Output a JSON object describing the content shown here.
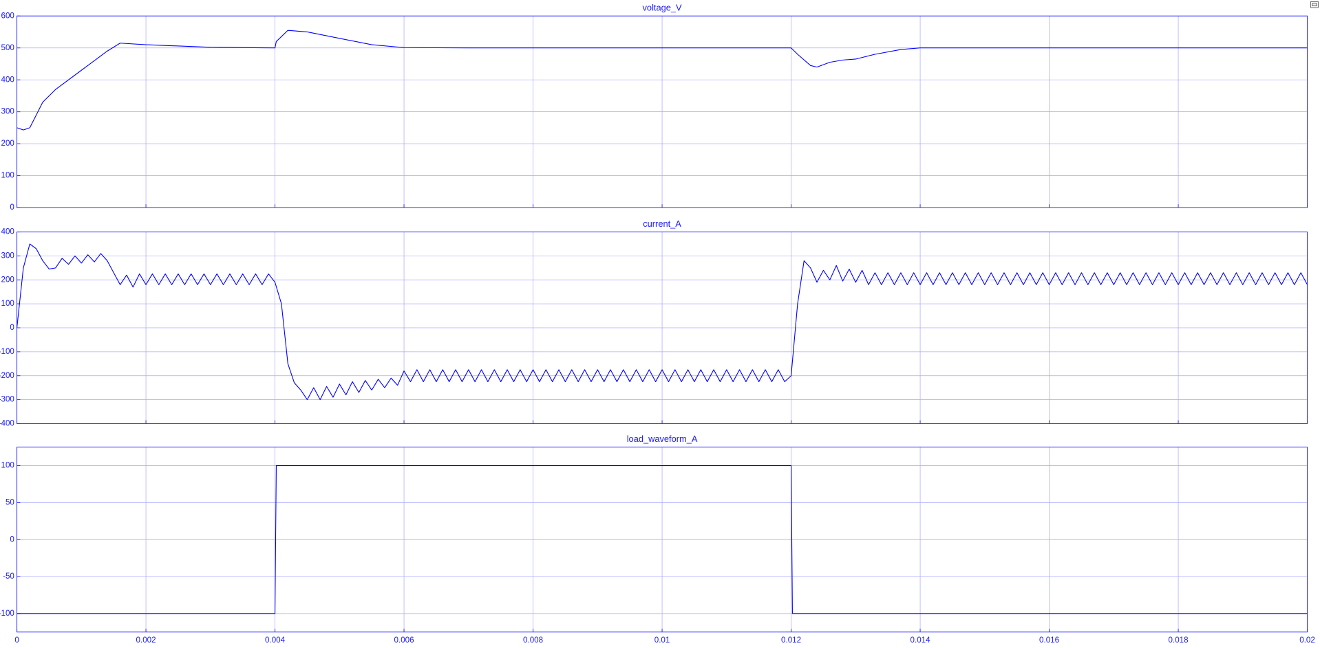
{
  "chart_data": [
    {
      "type": "line",
      "title": "voltage_V",
      "color": "#0000ff",
      "x": [
        0,
        0.0001,
        0.0002,
        0.0003,
        0.0004,
        0.0006,
        0.001,
        0.0014,
        0.0016,
        0.002,
        0.003,
        0.004,
        0.00402,
        0.0042,
        0.0045,
        0.005,
        0.0055,
        0.006,
        0.007,
        0.012,
        0.0121,
        0.0123,
        0.0124,
        0.0126,
        0.0128,
        0.013,
        0.0133,
        0.0137,
        0.014,
        0.02
      ],
      "values": [
        250,
        243,
        250,
        290,
        330,
        370,
        430,
        490,
        515,
        510,
        502,
        500,
        520,
        555,
        550,
        530,
        510,
        501,
        500,
        500,
        480,
        445,
        440,
        455,
        462,
        465,
        480,
        495,
        500,
        500
      ],
      "xlim": [
        0,
        0.02
      ],
      "xticks": [
        0,
        0.002,
        0.004,
        0.006,
        0.008,
        0.01,
        0.012,
        0.014,
        0.016,
        0.018,
        0.02
      ],
      "ylim": [
        0,
        600
      ],
      "yticks": [
        0,
        100,
        200,
        300,
        400,
        500,
        600
      ],
      "grid": true
    },
    {
      "type": "line",
      "title": "current_A",
      "color": "#0000ff",
      "x": [
        0,
        0.0001,
        0.0002,
        0.0003,
        0.0004,
        0.0005,
        0.0006,
        0.0007,
        0.0008,
        0.0009,
        0.001,
        0.0011,
        0.0012,
        0.0013,
        0.0014,
        0.0015,
        0.0016,
        0.0017,
        0.0018,
        0.0019,
        0.002,
        0.0021,
        0.0022,
        0.0023,
        0.0024,
        0.0025,
        0.0026,
        0.0027,
        0.0028,
        0.0029,
        0.003,
        0.0031,
        0.0032,
        0.0033,
        0.0034,
        0.0035,
        0.0036,
        0.0037,
        0.0038,
        0.0039,
        0.004,
        0.0041,
        0.0042,
        0.0043,
        0.0044,
        0.0045,
        0.0046,
        0.0047,
        0.0048,
        0.0049,
        0.005,
        0.0051,
        0.0052,
        0.0053,
        0.0054,
        0.0055,
        0.0056,
        0.0057,
        0.0058,
        0.0059,
        0.006,
        0.0061,
        0.0062,
        0.0063,
        0.0064,
        0.0065,
        0.0066,
        0.0067,
        0.0068,
        0.0069,
        0.007,
        0.0071,
        0.0072,
        0.0073,
        0.0074,
        0.0075,
        0.0076,
        0.0077,
        0.0078,
        0.0079,
        0.008,
        0.0081,
        0.0082,
        0.0083,
        0.0084,
        0.0085,
        0.0086,
        0.0087,
        0.0088,
        0.0089,
        0.009,
        0.0091,
        0.0092,
        0.0093,
        0.0094,
        0.0095,
        0.0096,
        0.0097,
        0.0098,
        0.0099,
        0.01,
        0.0101,
        0.0102,
        0.0103,
        0.0104,
        0.0105,
        0.0106,
        0.0107,
        0.0108,
        0.0109,
        0.011,
        0.0111,
        0.0112,
        0.0113,
        0.0114,
        0.0115,
        0.0116,
        0.0117,
        0.0118,
        0.0119,
        0.012,
        0.0121,
        0.0122,
        0.0123,
        0.0124,
        0.0125,
        0.0126,
        0.0127,
        0.0128,
        0.0129,
        0.013,
        0.0131,
        0.0132,
        0.0133,
        0.0134,
        0.0135,
        0.0136,
        0.0137,
        0.0138,
        0.0139,
        0.014,
        0.0141,
        0.0142,
        0.0143,
        0.0144,
        0.0145,
        0.0146,
        0.0147,
        0.0148,
        0.0149,
        0.015,
        0.0151,
        0.0152,
        0.0153,
        0.0154,
        0.0155,
        0.0156,
        0.0157,
        0.0158,
        0.0159,
        0.016,
        0.0161,
        0.0162,
        0.0163,
        0.0164,
        0.0165,
        0.0166,
        0.0167,
        0.0168,
        0.0169,
        0.017,
        0.0171,
        0.0172,
        0.0173,
        0.0174,
        0.0175,
        0.0176,
        0.0177,
        0.0178,
        0.0179,
        0.018,
        0.0181,
        0.0182,
        0.0183,
        0.0184,
        0.0185,
        0.0186,
        0.0187,
        0.0188,
        0.0189,
        0.019,
        0.0191,
        0.0192,
        0.0193,
        0.0194,
        0.0195,
        0.0196,
        0.0197,
        0.0198,
        0.0199,
        0.02
      ],
      "values": [
        0,
        250,
        350,
        330,
        280,
        245,
        250,
        290,
        265,
        300,
        270,
        305,
        275,
        310,
        280,
        230,
        180,
        220,
        170,
        225,
        180,
        225,
        180,
        225,
        180,
        225,
        180,
        225,
        180,
        225,
        180,
        225,
        180,
        225,
        180,
        225,
        180,
        225,
        180,
        225,
        190,
        100,
        -150,
        -230,
        -260,
        -300,
        -250,
        -300,
        -245,
        -290,
        -235,
        -280,
        -225,
        -270,
        -220,
        -260,
        -215,
        -250,
        -210,
        -240,
        -180,
        -225,
        -175,
        -225,
        -175,
        -225,
        -175,
        -225,
        -175,
        -225,
        -175,
        -225,
        -175,
        -225,
        -175,
        -225,
        -175,
        -225,
        -175,
        -225,
        -175,
        -225,
        -175,
        -225,
        -175,
        -225,
        -175,
        -225,
        -175,
        -225,
        -175,
        -225,
        -175,
        -225,
        -175,
        -225,
        -175,
        -225,
        -175,
        -225,
        -175,
        -225,
        -175,
        -225,
        -175,
        -225,
        -175,
        -225,
        -175,
        -225,
        -175,
        -225,
        -175,
        -225,
        -175,
        -225,
        -175,
        -225,
        -175,
        -225,
        -200,
        100,
        280,
        250,
        190,
        240,
        200,
        260,
        195,
        245,
        190,
        240,
        180,
        230,
        180,
        230,
        180,
        230,
        180,
        230,
        180,
        230,
        180,
        230,
        180,
        230,
        180,
        230,
        180,
        230,
        180,
        230,
        180,
        230,
        180,
        230,
        180,
        230,
        180,
        230,
        180,
        230,
        180,
        230,
        180,
        230,
        180,
        230,
        180,
        230,
        180,
        230,
        180,
        230,
        180,
        230,
        180,
        230,
        180,
        230,
        180,
        230,
        180,
        230,
        180,
        230,
        180,
        230,
        180,
        230,
        180,
        230,
        180,
        230,
        180,
        230,
        180,
        230,
        180,
        230,
        180
      ],
      "xlim": [
        0,
        0.02
      ],
      "xticks": [
        0,
        0.002,
        0.004,
        0.006,
        0.008,
        0.01,
        0.012,
        0.014,
        0.016,
        0.018,
        0.02
      ],
      "ylim": [
        -400,
        400
      ],
      "yticks": [
        -400,
        -300,
        -200,
        -100,
        0,
        100,
        200,
        300,
        400
      ],
      "grid": true
    },
    {
      "type": "line",
      "title": "load_waveform_A",
      "color": "#0000ff",
      "x": [
        0,
        0.004,
        0.00402,
        0.012,
        0.01202,
        0.02
      ],
      "values": [
        -100,
        -100,
        100,
        100,
        -100,
        -100
      ],
      "xlim": [
        0,
        0.02
      ],
      "xticks": [
        0,
        0.002,
        0.004,
        0.006,
        0.008,
        0.01,
        0.012,
        0.014,
        0.016,
        0.018,
        0.02
      ],
      "ylim": [
        -125,
        125
      ],
      "yticks": [
        -100,
        -50,
        0,
        50,
        100
      ],
      "grid": true
    }
  ]
}
